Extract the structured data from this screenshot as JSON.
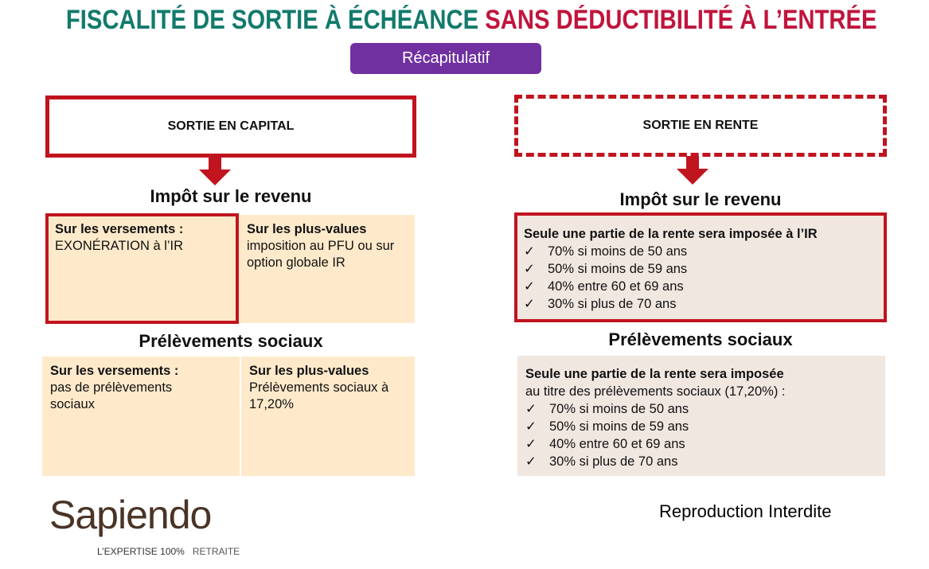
{
  "title": {
    "part1": "FISCALITÉ DE SORTIE À ÉCHÉANCE",
    "part2": "SANS DÉDUCTIBILITÉ À L’ENTRÉE",
    "color1": "#127a6c",
    "color2": "#c0143c"
  },
  "recap_label": "Récapitulatif",
  "left": {
    "header": "SORTIE EN CAPITAL",
    "ir_title": "Impôt sur le revenu",
    "ir_cells": [
      {
        "heading": "Sur les versements :",
        "body": "EXONÉRATION à l’IR"
      },
      {
        "heading": "Sur les plus-values",
        "body": "imposition au PFU ou sur option globale IR"
      }
    ],
    "ps_title": "Prélèvements sociaux",
    "ps_cells": [
      {
        "heading": "Sur les versements :",
        "body": "pas de prélèvements sociaux"
      },
      {
        "heading": "Sur les plus-values",
        "body": "Prélèvements sociaux à 17,20%"
      }
    ]
  },
  "right": {
    "header": "SORTIE EN RENTE",
    "ir_title": "Impôt sur le revenu",
    "ir_box": {
      "heading": "Seule une partie de la rente sera imposée à l’IR",
      "items": [
        "70% si moins de 50 ans",
        "50% si moins de 59 ans",
        "40% entre 60 et 69 ans",
        "30% si plus de 70 ans"
      ]
    },
    "ps_title": "Prélèvements sociaux",
    "ps_box": {
      "heading": "Seule une partie de la rente sera imposée",
      "subheading": "au titre des prélèvements sociaux (17,20%) :",
      "items": [
        "70% si moins de 50 ans",
        "50% si moins de 59 ans",
        "40% entre 60 et 69 ans",
        "30% si plus de 70 ans"
      ]
    }
  },
  "check_glyph": "✓",
  "logo": {
    "name": "Sapiendo",
    "tagline1": "L’EXPERTISE 100%",
    "tagline2": "RETRAITE"
  },
  "footer": "Reproduction Interdite"
}
